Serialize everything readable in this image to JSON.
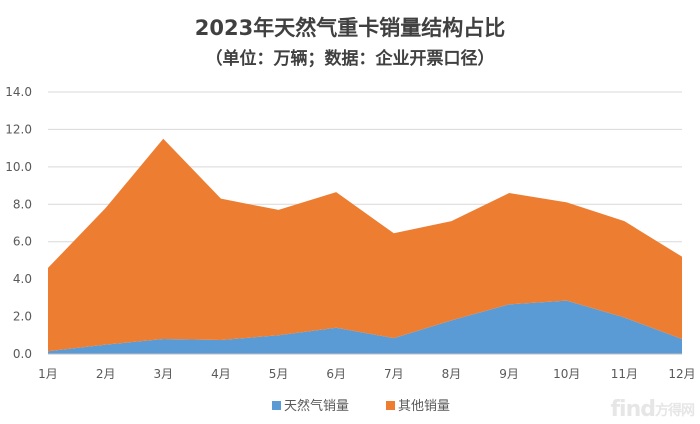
{
  "chart_data": {
    "type": "area",
    "stacked": true,
    "title": "2023年天然气重卡销量结构占比",
    "subtitle": "（单位：万辆；数据：企业开票口径）",
    "categories": [
      "1月",
      "2月",
      "3月",
      "4月",
      "5月",
      "6月",
      "7月",
      "8月",
      "9月",
      "10月",
      "11月",
      "12月"
    ],
    "series": [
      {
        "name": "天然气销量",
        "color": "#5b9bd5",
        "values": [
          0.15,
          0.5,
          0.8,
          0.75,
          1.0,
          1.4,
          0.85,
          1.8,
          2.65,
          2.85,
          1.95,
          0.8
        ]
      },
      {
        "name": "其他销量",
        "color": "#ed7d31",
        "values": [
          4.45,
          7.3,
          10.7,
          7.55,
          6.7,
          7.25,
          5.6,
          5.3,
          5.95,
          5.25,
          5.15,
          4.4
        ]
      }
    ],
    "yticks": [
      "0.0",
      "2.0",
      "4.0",
      "6.0",
      "8.0",
      "10.0",
      "12.0",
      "14.0"
    ],
    "ylim": [
      0,
      14
    ],
    "grid": true,
    "legend_position": "bottom"
  },
  "watermark": {
    "brand": "find",
    "suffix": "方得网"
  }
}
